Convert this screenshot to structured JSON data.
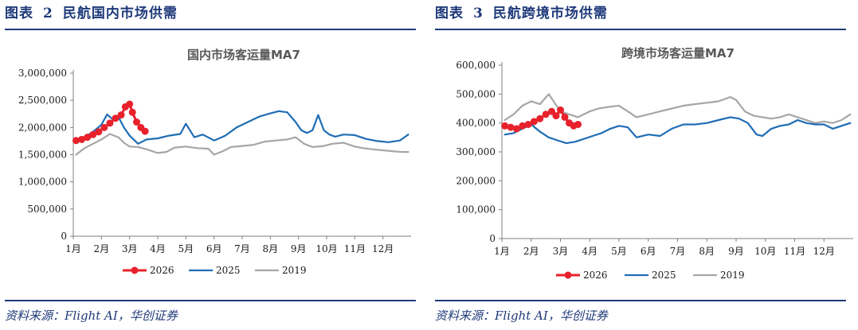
{
  "colors": {
    "accent": "#1f3a7a",
    "s2026": "#e8212b",
    "s2025": "#1f6db4",
    "s2019": "#a6a6a6"
  },
  "panels": [
    {
      "fig_label": "图表",
      "fig_num": "2",
      "fig_name": "民航国内市场供需",
      "source": "资料来源：Flight AI，华创证券"
    },
    {
      "fig_label": "图表",
      "fig_num": "3",
      "fig_name": "民航跨境市场供需",
      "source": "资料来源：Flight AI，华创证券"
    }
  ],
  "chart_data": [
    {
      "type": "line",
      "title": "国内市场客运量MA7",
      "xlabel": "",
      "ylabel": "",
      "x_ticks": [
        "1月",
        "2月",
        "3月",
        "4月",
        "5月",
        "6月",
        "7月",
        "8月",
        "9月",
        "10月",
        "11月",
        "12月"
      ],
      "ylim": [
        0,
        3000000
      ],
      "y_ticks": [
        "0",
        "500,000",
        "1,000,000",
        "1,500,000",
        "2,000,000",
        "2,500,000",
        "3,000,000"
      ],
      "y_tick_values": [
        0,
        500000,
        1000000,
        1500000,
        2000000,
        2500000,
        3000000
      ],
      "legend_position": "bottom",
      "grid": false,
      "series": [
        {
          "name": "2026",
          "color": "#e8212b",
          "markers": true,
          "x": [
            0.1,
            0.3,
            0.5,
            0.7,
            0.9,
            1.1,
            1.3,
            1.5,
            1.7,
            1.85,
            2.0,
            2.1,
            2.25,
            2.4,
            2.55
          ],
          "y": [
            1760000,
            1780000,
            1820000,
            1870000,
            1920000,
            2000000,
            2080000,
            2170000,
            2230000,
            2380000,
            2430000,
            2280000,
            2100000,
            2000000,
            1930000
          ]
        },
        {
          "name": "2025",
          "color": "#1f6db4",
          "markers": false,
          "x": [
            0.1,
            0.4,
            0.7,
            1.0,
            1.2,
            1.4,
            1.6,
            1.8,
            2.0,
            2.3,
            2.6,
            3.0,
            3.4,
            3.8,
            4.0,
            4.3,
            4.6,
            5.0,
            5.4,
            5.8,
            6.2,
            6.6,
            7.0,
            7.3,
            7.6,
            7.9,
            8.1,
            8.3,
            8.5,
            8.7,
            8.9,
            9.1,
            9.3,
            9.6,
            10.0,
            10.4,
            10.8,
            11.2,
            11.6,
            11.9
          ],
          "y": [
            1760000,
            1820000,
            1920000,
            2050000,
            2240000,
            2150000,
            2200000,
            2000000,
            1850000,
            1700000,
            1780000,
            1800000,
            1850000,
            1880000,
            2070000,
            1820000,
            1870000,
            1760000,
            1850000,
            2000000,
            2100000,
            2200000,
            2260000,
            2300000,
            2280000,
            2100000,
            1950000,
            1900000,
            1950000,
            2230000,
            1950000,
            1870000,
            1830000,
            1870000,
            1860000,
            1790000,
            1750000,
            1730000,
            1760000,
            1870000
          ]
        },
        {
          "name": "2019",
          "color": "#a6a6a6",
          "markers": false,
          "x": [
            0.1,
            0.4,
            0.7,
            1.0,
            1.3,
            1.6,
            1.8,
            2.0,
            2.3,
            2.6,
            3.0,
            3.3,
            3.6,
            4.0,
            4.4,
            4.8,
            5.0,
            5.3,
            5.6,
            6.0,
            6.4,
            6.8,
            7.2,
            7.6,
            7.9,
            8.2,
            8.5,
            8.9,
            9.2,
            9.6,
            10.0,
            10.3,
            10.6,
            11.0,
            11.4,
            11.7,
            11.9
          ],
          "y": [
            1500000,
            1620000,
            1700000,
            1780000,
            1880000,
            1820000,
            1720000,
            1650000,
            1640000,
            1600000,
            1530000,
            1550000,
            1630000,
            1650000,
            1620000,
            1610000,
            1500000,
            1560000,
            1640000,
            1660000,
            1680000,
            1740000,
            1760000,
            1780000,
            1820000,
            1700000,
            1640000,
            1660000,
            1700000,
            1720000,
            1650000,
            1620000,
            1600000,
            1580000,
            1560000,
            1550000,
            1550000
          ]
        }
      ]
    },
    {
      "type": "line",
      "title": "跨境市场客运量MA7",
      "xlabel": "",
      "ylabel": "",
      "x_ticks": [
        "1月",
        "2月",
        "3月",
        "4月",
        "5月",
        "6月",
        "7月",
        "8月",
        "9月",
        "10月",
        "11月",
        "12月"
      ],
      "ylim": [
        0,
        600000
      ],
      "y_ticks": [
        "0",
        "100,000",
        "200,000",
        "300,000",
        "400,000",
        "500,000",
        "600,000"
      ],
      "y_tick_values": [
        0,
        100000,
        200000,
        300000,
        400000,
        500000,
        600000
      ],
      "legend_position": "bottom",
      "grid": false,
      "series": [
        {
          "name": "2026",
          "color": "#e8212b",
          "markers": true,
          "x": [
            0.1,
            0.3,
            0.5,
            0.7,
            0.9,
            1.1,
            1.3,
            1.5,
            1.7,
            1.85,
            2.0,
            2.15,
            2.3,
            2.45,
            2.6
          ],
          "y": [
            390000,
            385000,
            380000,
            390000,
            395000,
            405000,
            415000,
            430000,
            440000,
            425000,
            445000,
            420000,
            400000,
            390000,
            395000
          ]
        },
        {
          "name": "2025",
          "color": "#1f6db4",
          "markers": false,
          "x": [
            0.1,
            0.4,
            0.7,
            1.0,
            1.3,
            1.6,
            1.9,
            2.2,
            2.5,
            2.8,
            3.1,
            3.4,
            3.7,
            4.0,
            4.3,
            4.6,
            5.0,
            5.4,
            5.8,
            6.2,
            6.6,
            7.0,
            7.4,
            7.8,
            8.1,
            8.4,
            8.7,
            8.9,
            9.2,
            9.5,
            9.8,
            10.1,
            10.4,
            10.7,
            11.0,
            11.3,
            11.6,
            11.9
          ],
          "y": [
            360000,
            365000,
            380000,
            395000,
            370000,
            350000,
            340000,
            330000,
            335000,
            345000,
            355000,
            365000,
            380000,
            390000,
            385000,
            350000,
            360000,
            355000,
            380000,
            395000,
            395000,
            400000,
            410000,
            420000,
            415000,
            400000,
            360000,
            355000,
            380000,
            390000,
            395000,
            410000,
            400000,
            395000,
            395000,
            380000,
            390000,
            400000
          ]
        },
        {
          "name": "2019",
          "color": "#a6a6a6",
          "markers": false,
          "x": [
            0.1,
            0.4,
            0.7,
            1.0,
            1.3,
            1.6,
            1.8,
            2.0,
            2.3,
            2.6,
            3.0,
            3.3,
            3.6,
            4.0,
            4.3,
            4.6,
            5.0,
            5.4,
            5.8,
            6.2,
            6.6,
            7.0,
            7.4,
            7.8,
            8.0,
            8.3,
            8.6,
            8.9,
            9.2,
            9.5,
            9.8,
            10.1,
            10.4,
            10.7,
            11.0,
            11.3,
            11.6,
            11.9
          ],
          "y": [
            410000,
            430000,
            460000,
            475000,
            465000,
            500000,
            470000,
            440000,
            430000,
            420000,
            440000,
            450000,
            455000,
            460000,
            440000,
            420000,
            430000,
            440000,
            450000,
            460000,
            465000,
            470000,
            475000,
            490000,
            480000,
            440000,
            425000,
            420000,
            415000,
            420000,
            430000,
            420000,
            410000,
            400000,
            405000,
            400000,
            410000,
            430000
          ]
        }
      ]
    }
  ]
}
